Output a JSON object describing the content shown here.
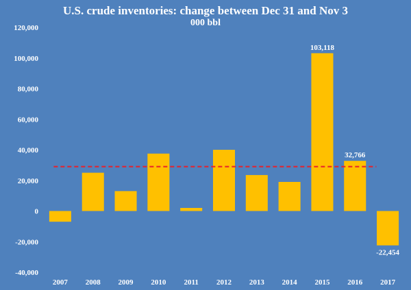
{
  "chart_data": {
    "type": "bar",
    "title": "U.S. crude inventories: change between Dec 31 and Nov 3",
    "subtitle": "000 bbl",
    "categories": [
      "2007",
      "2008",
      "2009",
      "2010",
      "2011",
      "2012",
      "2013",
      "2014",
      "2015",
      "2016",
      "2017"
    ],
    "values": [
      -7000,
      25000,
      13000,
      37500,
      2000,
      40000,
      23500,
      19000,
      103118,
      32766,
      -22454
    ],
    "data_labels": {
      "2015": "103,118",
      "2016": "32,766",
      "2017": "-22,454"
    },
    "reference_line": {
      "value": 29000,
      "style": "dashed",
      "color": "#e8202a"
    },
    "ylim": [
      -40000,
      120000
    ],
    "yticks": [
      -40000,
      -20000,
      0,
      20000,
      40000,
      60000,
      80000,
      100000,
      120000
    ],
    "ytick_labels": [
      "-40,000",
      "-20,000",
      "0",
      "20,000",
      "40,000",
      "60,000",
      "80,000",
      "100,000",
      "120,000"
    ],
    "xlabel": "",
    "ylabel": "",
    "grid": false,
    "legend": "none",
    "colors": {
      "bar": "#ffc000",
      "background": "#4f81bd",
      "text": "#ffffff"
    }
  }
}
